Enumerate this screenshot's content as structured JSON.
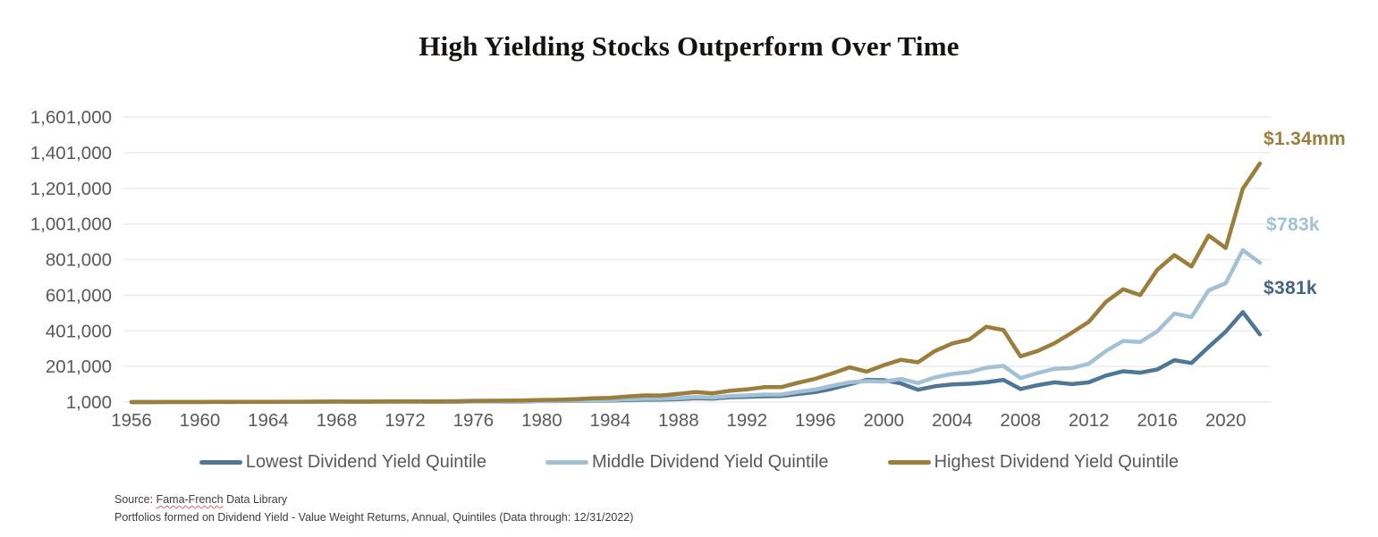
{
  "title": "High Yielding Stocks Outperform Over Time",
  "chart_data": {
    "type": "line",
    "x": [
      1956,
      1957,
      1958,
      1959,
      1960,
      1961,
      1962,
      1963,
      1964,
      1965,
      1966,
      1967,
      1968,
      1969,
      1970,
      1971,
      1972,
      1973,
      1974,
      1975,
      1976,
      1977,
      1978,
      1979,
      1980,
      1981,
      1982,
      1983,
      1984,
      1985,
      1986,
      1987,
      1988,
      1989,
      1990,
      1991,
      1992,
      1993,
      1994,
      1995,
      1996,
      1997,
      1998,
      1999,
      2000,
      2001,
      2002,
      2003,
      2004,
      2005,
      2006,
      2007,
      2008,
      2009,
      2010,
      2011,
      2012,
      2013,
      2014,
      2015,
      2016,
      2017,
      2018,
      2019,
      2020,
      2021,
      2022
    ],
    "series": [
      {
        "name": "Lowest Dividend Yield Quintile",
        "color": "#4e7795",
        "end_label": "$381k",
        "values": [
          1000,
          920,
          1350,
          1500,
          1520,
          1850,
          1700,
          2000,
          2280,
          2620,
          2440,
          3100,
          3350,
          2900,
          2820,
          3300,
          3800,
          3200,
          2300,
          3100,
          3900,
          3800,
          4200,
          5200,
          6800,
          6500,
          7900,
          9500,
          9400,
          12200,
          14200,
          14800,
          17000,
          22000,
          20500,
          28000,
          30500,
          33500,
          34500,
          46500,
          57000,
          76000,
          101000,
          126000,
          124000,
          106000,
          70000,
          90000,
          100000,
          104000,
          112000,
          126000,
          74000,
          96000,
          112000,
          102000,
          112000,
          150000,
          174000,
          166000,
          184000,
          236000,
          220000,
          310000,
          396000,
          506000,
          381000
        ]
      },
      {
        "name": "Middle Dividend Yield Quintile",
        "color": "#a3c1d5",
        "end_label": "$783k",
        "values": [
          1000,
          890,
          1290,
          1400,
          1430,
          1760,
          1680,
          2000,
          2300,
          2560,
          2380,
          2880,
          3240,
          2860,
          2920,
          3330,
          3840,
          3450,
          2760,
          3860,
          5000,
          4950,
          5300,
          6300,
          7800,
          7900,
          9700,
          11900,
          12400,
          16300,
          19300,
          19600,
          23200,
          29300,
          26700,
          35200,
          38700,
          43200,
          43700,
          58700,
          71000,
          93000,
          112000,
          119000,
          116000,
          131000,
          108000,
          140000,
          159000,
          169000,
          194000,
          204000,
          136000,
          164000,
          188000,
          192000,
          216000,
          288000,
          344000,
          338000,
          398000,
          498000,
          478000,
          628000,
          668000,
          854000,
          783000
        ]
      },
      {
        "name": "Highest Dividend Yield Quintile",
        "color": "#9b7d3c",
        "end_label": "$1.34mm",
        "values": [
          1000,
          950,
          1400,
          1550,
          1600,
          2000,
          1950,
          2350,
          2750,
          3100,
          2900,
          3500,
          4200,
          3700,
          3900,
          4400,
          5200,
          4900,
          4300,
          6200,
          8100,
          8500,
          9100,
          10600,
          12800,
          14000,
          17500,
          22000,
          24500,
          32000,
          38500,
          38000,
          47000,
          57000,
          50000,
          64000,
          72000,
          85000,
          85000,
          110000,
          132000,
          162000,
          196000,
          172000,
          208000,
          238000,
          224000,
          288000,
          330000,
          352000,
          424000,
          406000,
          258000,
          288000,
          332000,
          390000,
          452000,
          564000,
          634000,
          602000,
          744000,
          826000,
          762000,
          936000,
          866000,
          1198000,
          1340000
        ]
      }
    ],
    "y_ticks": [
      "1,000",
      "201,000",
      "401,000",
      "601,000",
      "801,000",
      "1,001,000",
      "1,201,000",
      "1,401,000",
      "1,601,000"
    ],
    "y_tick_values": [
      1000,
      201000,
      401000,
      601000,
      801000,
      1001000,
      1201000,
      1401000,
      1601000
    ],
    "x_ticks": [
      1956,
      1960,
      1964,
      1968,
      1972,
      1976,
      1980,
      1984,
      1988,
      1992,
      1996,
      2000,
      2004,
      2008,
      2012,
      2016,
      2020
    ],
    "ylim": [
      1000,
      1601000
    ],
    "xlabel": "",
    "ylabel": "",
    "grid": "horizontal",
    "legend_position": "bottom"
  },
  "annotations": [
    {
      "text": "$1.34mm",
      "color": "#9b7d3c"
    },
    {
      "text": "$783k",
      "color": "#a3c1d5"
    },
    {
      "text": "$381k",
      "color": "#44647f"
    }
  ],
  "footer": {
    "source_prefix": "Source: ",
    "source_marked": "Fama-French",
    "source_rest": " Data Library",
    "note": "Portfolios formed on Dividend Yield - Value Weight Returns, Annual, Quintiles (Data through: 12/31/2022)"
  },
  "colors": {
    "background": "#ffffff",
    "title_text": "#151210",
    "axis_text": "#595959",
    "gridline": "#e8e8e8",
    "footer_text": "#3d3d3d",
    "spellcheck_underline": "#e0605f"
  }
}
